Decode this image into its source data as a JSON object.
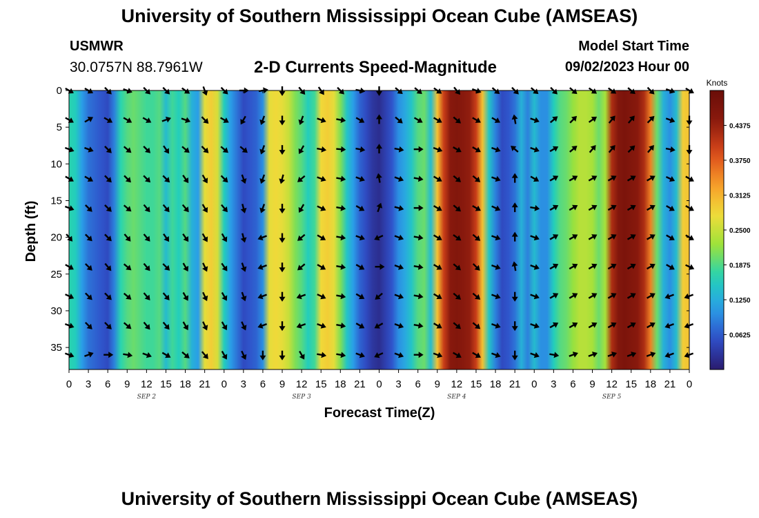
{
  "header": {
    "title": "University of Southern Mississippi Ocean Cube (AMSEAS)",
    "station": "USMWR",
    "coords": "30.0757N  88.7961W",
    "subtitle": "2-D Currents Speed-Magnitude",
    "model_start_label": "Model Start Time",
    "model_start_value": "09/02/2023 Hour 00"
  },
  "footer": {
    "title": "University of Southern Mississippi Ocean Cube (AMSEAS)"
  },
  "colors": {
    "palette": [
      "#2a1b6e",
      "#2f4fc9",
      "#2aa0e8",
      "#22d3b6",
      "#9be23a",
      "#f0dc3a",
      "#f79a28",
      "#d9471a",
      "#8b1a0e",
      "#6a0e08"
    ],
    "arrow": "#000000"
  },
  "chart_data": {
    "type": "heatmap",
    "title": "2-D Currents Speed-Magnitude",
    "xlabel": "Forecast Time(Z)",
    "ylabel": "Depth (ft)",
    "x_tick_labels": [
      "0",
      "3",
      "6",
      "9",
      "12",
      "15",
      "18",
      "21",
      "0",
      "3",
      "6",
      "9",
      "12",
      "15",
      "18",
      "21",
      "0",
      "3",
      "6",
      "9",
      "12",
      "15",
      "18",
      "21",
      "0",
      "3",
      "6",
      "9",
      "12",
      "15",
      "18",
      "21",
      "0"
    ],
    "date_labels": [
      {
        "text": "SEP 2",
        "hour": 12
      },
      {
        "text": "SEP 3",
        "hour": 36
      },
      {
        "text": "SEP 4",
        "hour": 60
      },
      {
        "text": "SEP 5",
        "hour": 84
      }
    ],
    "x_range_hours": [
      0,
      96
    ],
    "y_ticks": [
      0,
      5,
      10,
      15,
      20,
      25,
      30,
      35
    ],
    "y_range_ft": [
      0,
      38
    ],
    "colorbar": {
      "unit": "Knots",
      "tick_labels": [
        "0.4375",
        "0.3750",
        "0.3125",
        "0.2500",
        "0.1875",
        "0.1250",
        "0.0625"
      ],
      "range": [
        0,
        0.5
      ]
    },
    "speed_profile_hours": [
      0,
      1,
      2,
      3,
      4,
      5,
      6,
      7,
      8,
      9,
      10,
      11,
      12,
      13,
      14,
      15,
      16,
      17,
      18,
      19,
      20,
      21,
      22,
      23,
      24,
      25,
      26,
      27,
      28,
      29,
      30,
      31,
      32,
      33,
      34,
      35,
      36,
      37,
      38,
      39,
      40,
      41,
      42,
      43,
      44,
      45,
      46,
      47,
      48,
      49,
      50,
      51,
      52,
      53,
      54,
      55,
      56,
      57,
      58,
      59,
      60,
      61,
      62,
      63,
      64,
      65,
      66,
      67,
      68,
      69,
      70,
      71,
      72,
      73,
      74,
      75,
      76,
      77,
      78,
      79,
      80,
      81,
      82,
      83,
      84,
      85,
      86,
      87,
      88,
      89,
      90,
      91,
      92,
      93,
      94,
      95,
      96
    ],
    "speed_profile_knots": [
      0.17,
      0.16,
      0.11,
      0.08,
      0.07,
      0.06,
      0.05,
      0.09,
      0.17,
      0.19,
      0.2,
      0.19,
      0.18,
      0.18,
      0.19,
      0.14,
      0.18,
      0.16,
      0.19,
      0.13,
      0.11,
      0.27,
      0.29,
      0.26,
      0.16,
      0.11,
      0.08,
      0.05,
      0.06,
      0.07,
      0.1,
      0.27,
      0.28,
      0.27,
      0.25,
      0.21,
      0.19,
      0.16,
      0.18,
      0.28,
      0.29,
      0.27,
      0.21,
      0.15,
      0.11,
      0.07,
      0.05,
      0.03,
      0.02,
      0.04,
      0.06,
      0.1,
      0.12,
      0.15,
      0.19,
      0.2,
      0.14,
      0.3,
      0.4,
      0.45,
      0.46,
      0.45,
      0.44,
      0.4,
      0.3,
      0.15,
      0.09,
      0.05,
      0.06,
      0.08,
      0.13,
      0.09,
      0.14,
      0.1,
      0.1,
      0.16,
      0.19,
      0.2,
      0.22,
      0.24,
      0.24,
      0.23,
      0.2,
      0.23,
      0.42,
      0.46,
      0.47,
      0.46,
      0.45,
      0.42,
      0.35,
      0.2,
      0.13,
      0.1,
      0.14,
      0.29,
      0.3
    ],
    "arrows_hours": [
      0,
      3,
      6,
      9,
      12,
      15,
      18,
      21,
      24,
      27,
      30,
      33,
      36,
      39,
      42,
      45,
      48,
      51,
      54,
      57,
      60,
      63,
      66,
      69,
      72,
      75,
      78,
      81,
      84,
      87,
      90,
      93,
      96
    ],
    "arrows_depths_ft": [
      0,
      4,
      8,
      12,
      16,
      20,
      24,
      28,
      32,
      36
    ],
    "arrow_direction_deg": [
      [
        120,
        120,
        135,
        110,
        135,
        135,
        125,
        160,
        135,
        90,
        80,
        180,
        140,
        145,
        135,
        100,
        180,
        130,
        130,
        125,
        140,
        110,
        130,
        135,
        130,
        135,
        130,
        125,
        125,
        130,
        135,
        110,
        120
      ],
      [
        120,
        60,
        120,
        120,
        120,
        70,
        110,
        135,
        120,
        210,
        200,
        180,
        200,
        110,
        100,
        120,
        0,
        130,
        120,
        120,
        130,
        120,
        120,
        350,
        110,
        50,
        45,
        55,
        40,
        40,
        45,
        110,
        180
      ],
      [
        110,
        110,
        135,
        130,
        135,
        145,
        130,
        135,
        130,
        130,
        200,
        180,
        210,
        100,
        95,
        100,
        0,
        100,
        90,
        110,
        120,
        120,
        110,
        310,
        110,
        60,
        50,
        40,
        40,
        45,
        40,
        100,
        180
      ],
      [
        120,
        120,
        135,
        135,
        135,
        135,
        145,
        150,
        135,
        160,
        200,
        195,
        230,
        110,
        100,
        110,
        350,
        110,
        100,
        120,
        130,
        130,
        110,
        0,
        120,
        60,
        60,
        60,
        60,
        60,
        60,
        115,
        120
      ],
      [
        110,
        135,
        135,
        130,
        140,
        140,
        140,
        150,
        140,
        165,
        200,
        180,
        210,
        115,
        100,
        120,
        20,
        105,
        90,
        120,
        130,
        120,
        115,
        0,
        100,
        60,
        60,
        60,
        60,
        60,
        60,
        120,
        120
      ],
      [
        140,
        135,
        135,
        140,
        140,
        145,
        145,
        150,
        150,
        165,
        250,
        180,
        230,
        120,
        100,
        110,
        245,
        110,
        100,
        120,
        125,
        130,
        110,
        0,
        110,
        60,
        60,
        60,
        60,
        60,
        60,
        120,
        120
      ],
      [
        120,
        135,
        140,
        130,
        140,
        135,
        150,
        155,
        145,
        160,
        250,
        180,
        230,
        120,
        100,
        120,
        90,
        110,
        100,
        120,
        130,
        135,
        110,
        350,
        110,
        60,
        60,
        60,
        60,
        60,
        60,
        120,
        115
      ],
      [
        115,
        135,
        135,
        130,
        140,
        140,
        150,
        155,
        150,
        160,
        250,
        180,
        250,
        115,
        100,
        120,
        230,
        110,
        100,
        120,
        130,
        130,
        110,
        180,
        110,
        60,
        60,
        60,
        60,
        60,
        60,
        250,
        250
      ],
      [
        110,
        135,
        135,
        130,
        140,
        140,
        150,
        155,
        150,
        155,
        250,
        180,
        250,
        110,
        100,
        120,
        240,
        110,
        100,
        120,
        130,
        130,
        110,
        180,
        110,
        60,
        60,
        60,
        60,
        60,
        60,
        250,
        250
      ],
      [
        110,
        70,
        90,
        100,
        110,
        120,
        130,
        140,
        150,
        155,
        180,
        180,
        150,
        100,
        100,
        110,
        245,
        110,
        90,
        110,
        120,
        120,
        110,
        180,
        110,
        100,
        70,
        70,
        70,
        70,
        70,
        250,
        250
      ]
    ]
  }
}
